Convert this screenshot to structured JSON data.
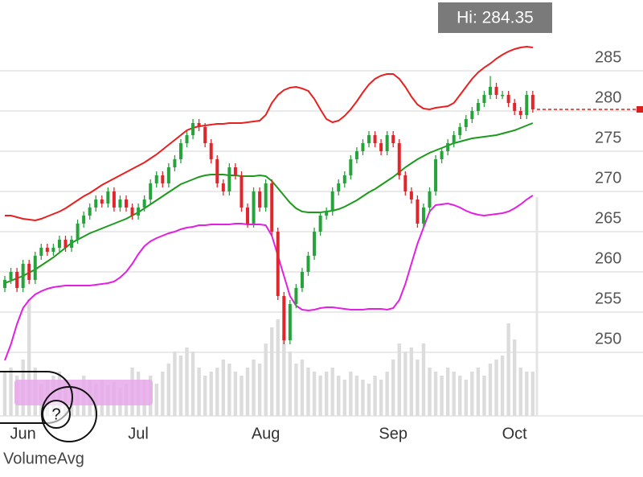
{
  "chart_data": {
    "type": "candlestick",
    "hi_label": "Hi: 284.35",
    "volume_label": "VolumeAvg",
    "help_icon": "?",
    "categories": [
      null,
      null,
      null,
      "Jun",
      null,
      null,
      null,
      null,
      null,
      null,
      null,
      null,
      null,
      null,
      null,
      null,
      null,
      null,
      null,
      null,
      null,
      null,
      "Jul",
      null,
      null,
      null,
      null,
      null,
      null,
      null,
      null,
      null,
      null,
      null,
      null,
      null,
      null,
      null,
      null,
      null,
      null,
      null,
      null,
      "Aug",
      null,
      null,
      null,
      null,
      null,
      null,
      null,
      null,
      null,
      null,
      null,
      null,
      null,
      null,
      null,
      null,
      null,
      null,
      null,
      null,
      "Sep",
      null,
      null,
      null,
      null,
      null,
      null,
      null,
      null,
      null,
      null,
      null,
      null,
      null,
      null,
      null,
      null,
      null,
      null,
      null,
      "Oct",
      null,
      null,
      null
    ],
    "ohlc": [
      [
        258,
        259.5,
        257.5,
        259
      ],
      [
        259,
        260.5,
        258.5,
        260
      ],
      [
        260,
        260.5,
        257.5,
        258
      ],
      [
        258,
        261.5,
        257.5,
        261
      ],
      [
        261,
        261.5,
        258.5,
        259
      ],
      [
        259,
        262.5,
        258.5,
        262
      ],
      [
        262,
        263.5,
        261.5,
        263
      ],
      [
        263,
        263.5,
        262,
        262.5
      ],
      [
        262.5,
        263.5,
        262,
        263
      ],
      [
        263,
        264.5,
        262.5,
        264
      ],
      [
        264,
        264.5,
        262.5,
        263
      ],
      [
        263,
        264.5,
        262.5,
        264
      ],
      [
        264,
        266.5,
        263.5,
        266
      ],
      [
        266,
        267.5,
        265.5,
        267
      ],
      [
        267,
        268.5,
        266.5,
        268
      ],
      [
        268,
        269.5,
        267.5,
        269
      ],
      [
        269,
        269.5,
        268,
        268.5
      ],
      [
        268.5,
        270.5,
        268,
        270
      ],
      [
        270,
        270.5,
        267.5,
        268
      ],
      [
        268,
        269.5,
        267.5,
        269
      ],
      [
        269,
        269.5,
        267.5,
        268
      ],
      [
        268,
        268.5,
        266.5,
        267
      ],
      [
        267,
        268.5,
        266.5,
        268
      ],
      [
        268,
        269.5,
        267.5,
        269
      ],
      [
        269,
        271.5,
        268.5,
        271
      ],
      [
        271,
        272.5,
        270.5,
        272
      ],
      [
        272,
        272.5,
        270.5,
        271
      ],
      [
        271,
        273.5,
        270.5,
        273
      ],
      [
        273,
        274.5,
        272.5,
        274
      ],
      [
        274,
        276.5,
        273.5,
        276
      ],
      [
        276,
        277.5,
        275.5,
        277
      ],
      [
        277,
        279,
        276.5,
        278.5
      ],
      [
        278.5,
        279,
        277.5,
        278
      ],
      [
        278,
        278.5,
        275.5,
        276
      ],
      [
        276,
        276.5,
        273.5,
        274
      ],
      [
        274,
        274.5,
        270.5,
        271
      ],
      [
        271,
        271.5,
        269.5,
        270
      ],
      [
        270,
        273.5,
        269.5,
        273
      ],
      [
        273,
        273.5,
        271.5,
        272
      ],
      [
        272,
        272.5,
        267.5,
        268
      ],
      [
        268,
        268.5,
        265.5,
        266
      ],
      [
        266,
        270.5,
        265.5,
        270
      ],
      [
        270,
        270.5,
        267.5,
        268
      ],
      [
        268,
        271.5,
        267.5,
        271
      ],
      [
        271,
        271.5,
        264.5,
        265
      ],
      [
        265,
        265.5,
        256.5,
        257
      ],
      [
        257,
        257.5,
        251,
        251.5
      ],
      [
        251.5,
        256.5,
        251,
        256
      ],
      [
        256,
        258.5,
        255.5,
        258
      ],
      [
        258,
        260.5,
        257.5,
        260
      ],
      [
        260,
        262.5,
        259.5,
        262
      ],
      [
        262,
        265.5,
        261.5,
        265
      ],
      [
        265,
        267.5,
        264.5,
        267
      ],
      [
        267,
        268,
        266.5,
        267.5
      ],
      [
        267.5,
        270.5,
        267,
        270
      ],
      [
        270,
        271.5,
        269.5,
        271
      ],
      [
        271,
        272.5,
        270.5,
        272
      ],
      [
        272,
        274.5,
        271.5,
        274
      ],
      [
        274,
        275.5,
        273.5,
        275
      ],
      [
        275,
        276.5,
        274.5,
        276
      ],
      [
        276,
        277.5,
        275.5,
        277
      ],
      [
        277,
        277.5,
        275.5,
        276
      ],
      [
        276,
        276.5,
        274.5,
        275
      ],
      [
        275,
        277.5,
        274.5,
        277
      ],
      [
        277,
        277.5,
        275.5,
        276
      ],
      [
        276,
        276.5,
        271.5,
        272
      ],
      [
        272,
        272.5,
        269.5,
        270
      ],
      [
        270,
        270.5,
        268.5,
        269
      ],
      [
        269,
        269.5,
        265.5,
        266
      ],
      [
        266,
        268.5,
        265.5,
        268
      ],
      [
        268,
        270.5,
        267.5,
        270
      ],
      [
        270,
        274.5,
        269.5,
        274
      ],
      [
        274,
        275.5,
        273.5,
        275
      ],
      [
        275,
        276.5,
        274.5,
        276
      ],
      [
        276,
        277.5,
        275.5,
        277
      ],
      [
        277,
        278.5,
        276.5,
        278
      ],
      [
        278,
        279.5,
        277.5,
        279
      ],
      [
        279,
        280.5,
        278.5,
        280
      ],
      [
        280,
        281.5,
        279.5,
        281
      ],
      [
        281,
        282.5,
        280.5,
        282
      ],
      [
        282,
        284.35,
        281.5,
        283
      ],
      [
        283,
        283.5,
        281.5,
        282
      ],
      [
        282,
        282.5,
        281.5,
        282
      ],
      [
        282,
        282.5,
        280.5,
        281
      ],
      [
        281,
        281.5,
        279.5,
        280
      ],
      [
        280,
        280.5,
        279,
        279.5
      ],
      [
        279.5,
        282.5,
        279,
        282
      ],
      [
        282,
        282.5,
        279.8,
        280.2
      ]
    ],
    "up_color": "#26a33a",
    "down_color": "#e0262b",
    "series": [
      {
        "color": "#e8201f",
        "values": [
          267,
          267,
          266.8,
          266.6,
          266.5,
          266.4,
          266.6,
          266.9,
          267.2,
          267.5,
          267.9,
          268.4,
          268.9,
          269.4,
          269.8,
          270.3,
          270.8,
          271.2,
          271.6,
          272,
          272.4,
          272.8,
          273.2,
          273.6,
          274.1,
          274.6,
          275.2,
          275.8,
          276.4,
          277,
          277.6,
          277.9,
          278.1,
          278.2,
          278.3,
          278.4,
          278.4,
          278.5,
          278.5,
          278.5,
          278.6,
          278.7,
          278.8,
          279.5,
          281,
          282,
          282.6,
          282.9,
          283,
          282.8,
          282.5,
          281.5,
          280.2,
          279,
          278.6,
          278.8,
          279.4,
          280.2,
          281.2,
          282.3,
          283.3,
          284,
          284.4,
          284.6,
          284.6,
          284,
          283,
          281.8,
          280.8,
          280.3,
          280.2,
          280.4,
          280.5,
          280.6,
          281,
          282,
          283,
          284,
          284.8,
          285.4,
          285.9,
          286.5,
          287,
          287.4,
          287.7,
          287.9,
          288,
          287.9
        ]
      },
      {
        "color": "#1c9a1c",
        "values": [
          258.6,
          258.9,
          259.2,
          259.5,
          259.9,
          260.3,
          260.8,
          261.3,
          261.8,
          262.4,
          263,
          263.6,
          264,
          264.4,
          264.8,
          265.1,
          265.4,
          265.7,
          266,
          266.3,
          266.6,
          267,
          267.4,
          267.9,
          268.4,
          268.9,
          269.4,
          269.9,
          270.4,
          270.9,
          271.2,
          271.5,
          271.8,
          272,
          272.1,
          272.1,
          272.1,
          272,
          272,
          271.9,
          271.9,
          271.9,
          272,
          271.9,
          271.3,
          270.4,
          269.5,
          268.6,
          267.9,
          267.5,
          267.4,
          267.4,
          267.4,
          267.5,
          267.6,
          267.8,
          268.1,
          268.5,
          268.9,
          269.4,
          269.9,
          270.3,
          270.8,
          271.3,
          271.8,
          272.4,
          273,
          273.5,
          274,
          274.4,
          274.8,
          275.1,
          275.4,
          275.7,
          276,
          276.2,
          276.4,
          276.6,
          276.7,
          276.8,
          276.9,
          277,
          277.2,
          277.4,
          277.6,
          277.9,
          278.2,
          278.5
        ]
      },
      {
        "color": "#e21fe2",
        "values": [
          249,
          251,
          253.5,
          255.5,
          256.5,
          257.2,
          257.6,
          257.9,
          258.1,
          258.2,
          258.3,
          258.3,
          258.3,
          258.3,
          258.3,
          258.4,
          258.5,
          258.6,
          258.8,
          259.3,
          260,
          261,
          262.2,
          263.2,
          263.8,
          264.2,
          264.5,
          264.8,
          265,
          265.3,
          265.5,
          265.6,
          265.8,
          265.8,
          265.9,
          265.9,
          265.9,
          265.9,
          266,
          266,
          265.9,
          265.9,
          265.9,
          265.8,
          264.5,
          262,
          259.5,
          257,
          255.8,
          255.3,
          255.2,
          255.3,
          255.5,
          255.6,
          255.6,
          255.5,
          255.4,
          255.3,
          255.3,
          255.3,
          255.4,
          255.4,
          255.4,
          255.3,
          255.5,
          256.5,
          258.5,
          261,
          263.5,
          265.5,
          267.5,
          268.3,
          268.4,
          268.5,
          268.3,
          268,
          267.6,
          267.3,
          267.1,
          267,
          267.1,
          267.2,
          267.3,
          267.5,
          267.9,
          268.4,
          269,
          269.5
        ]
      }
    ],
    "volume": {
      "color": "#dcdcdc",
      "vlim": [
        0,
        150
      ],
      "values": [
        55,
        60,
        50,
        70,
        145,
        60,
        40,
        45,
        50,
        55,
        45,
        40,
        35,
        50,
        45,
        40,
        45,
        38,
        42,
        35,
        40,
        60,
        55,
        45,
        50,
        40,
        55,
        65,
        80,
        75,
        85,
        80,
        60,
        50,
        55,
        60,
        70,
        65,
        55,
        50,
        60,
        70,
        65,
        90,
        110,
        120,
        100,
        80,
        65,
        70,
        60,
        55,
        50,
        55,
        60,
        50,
        45,
        55,
        50,
        45,
        40,
        50,
        45,
        55,
        70,
        90,
        80,
        85,
        70,
        90,
        60,
        55,
        50,
        60,
        55,
        50,
        45,
        55,
        60,
        50,
        65,
        70,
        75,
        115,
        95,
        60,
        55,
        55
      ]
    },
    "last_price": 280.2,
    "last_price_color": "#d9201f",
    "ylim": [
      245,
      293
    ],
    "yticks": [
      250,
      255,
      260,
      265,
      270,
      275,
      280,
      285
    ],
    "grid": true
  }
}
